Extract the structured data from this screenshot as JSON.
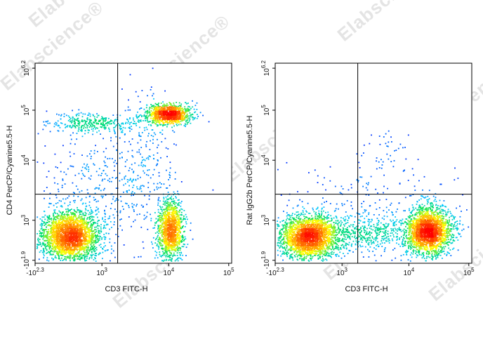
{
  "watermark": {
    "text": "Elabscience",
    "mark": "®"
  },
  "chart_data": [
    {
      "type": "scatter",
      "subtype": "flow-cytometry-pseudocolor-density",
      "title": "",
      "xlabel": "CD3 FITC-H",
      "ylabel": "CD4 PerCP/Cyanine5.5-H",
      "x_scale": "logicle",
      "y_scale": "logicle",
      "xlim": [
        "-10^2.3",
        "10^5"
      ],
      "ylim": [
        "-10^1.9",
        "10^6.2"
      ],
      "x_ticks": [
        {
          "base": "-10",
          "exp": "2.3"
        },
        {
          "base": "10",
          "exp": "3"
        },
        {
          "base": "10",
          "exp": "4"
        },
        {
          "base": "10",
          "exp": "5"
        }
      ],
      "y_ticks": [
        {
          "base": "-10",
          "exp": "1.9"
        },
        {
          "base": "10",
          "exp": "3"
        },
        {
          "base": "10",
          "exp": "4"
        },
        {
          "base": "10",
          "exp": "5"
        },
        {
          "base": "10",
          "exp": "6.2"
        }
      ],
      "colormap": [
        "#0000ff",
        "#00c8ff",
        "#00e060",
        "#ffff00",
        "#ff8000",
        "#ff0000"
      ],
      "quadrant_gate": {
        "x_frac": 0.42,
        "y_frac": 0.345
      },
      "populations": [
        {
          "x_frac": 0.18,
          "y_frac": 0.135,
          "sx": 0.075,
          "sy": 0.065,
          "n": 2600
        },
        {
          "x_frac": 0.69,
          "y_frac": 0.165,
          "sx": 0.032,
          "sy": 0.08,
          "n": 1300
        },
        {
          "x_frac": 0.68,
          "y_frac": 0.745,
          "sx": 0.06,
          "sy": 0.025,
          "n": 1100
        },
        {
          "x_frac": 0.3,
          "y_frac": 0.7,
          "sx": 0.12,
          "sy": 0.025,
          "n": 350
        },
        {
          "x_frac": 0.55,
          "y_frac": 0.5,
          "sx": 0.08,
          "sy": 0.2,
          "n": 250
        },
        {
          "x_frac": 0.3,
          "y_frac": 0.4,
          "sx": 0.15,
          "sy": 0.13,
          "n": 260
        }
      ],
      "seed": 11
    },
    {
      "type": "scatter",
      "subtype": "flow-cytometry-pseudocolor-density",
      "title": "",
      "xlabel": "CD3 FITC-H",
      "ylabel": "Rat IgG2b PerCP/Cyanine5.5-H",
      "x_scale": "logicle",
      "y_scale": "logicle",
      "xlim": [
        "-10^2.3",
        "10^5"
      ],
      "ylim": [
        "-10^1.9",
        "10^6.2"
      ],
      "x_ticks": [
        {
          "base": "-10",
          "exp": "2.3"
        },
        {
          "base": "10",
          "exp": "3"
        },
        {
          "base": "10",
          "exp": "4"
        },
        {
          "base": "10",
          "exp": "5"
        }
      ],
      "y_ticks": [
        {
          "base": "-10",
          "exp": "1.9"
        },
        {
          "base": "10",
          "exp": "3"
        },
        {
          "base": "10",
          "exp": "4"
        },
        {
          "base": "10",
          "exp": "5"
        },
        {
          "base": "10",
          "exp": "6.2"
        }
      ],
      "colormap": [
        "#0000ff",
        "#00c8ff",
        "#00e060",
        "#ffff00",
        "#ff8000",
        "#ff0000"
      ],
      "quadrant_gate": {
        "x_frac": 0.42,
        "y_frac": 0.345
      },
      "populations": [
        {
          "x_frac": 0.17,
          "y_frac": 0.13,
          "sx": 0.075,
          "sy": 0.055,
          "n": 2400
        },
        {
          "x_frac": 0.78,
          "y_frac": 0.16,
          "sx": 0.06,
          "sy": 0.06,
          "n": 2200
        },
        {
          "x_frac": 0.47,
          "y_frac": 0.15,
          "sx": 0.12,
          "sy": 0.05,
          "n": 500
        },
        {
          "x_frac": 0.5,
          "y_frac": 0.35,
          "sx": 0.22,
          "sy": 0.09,
          "n": 140
        },
        {
          "x_frac": 0.55,
          "y_frac": 0.58,
          "sx": 0.05,
          "sy": 0.05,
          "n": 30
        }
      ],
      "seed": 23
    }
  ]
}
